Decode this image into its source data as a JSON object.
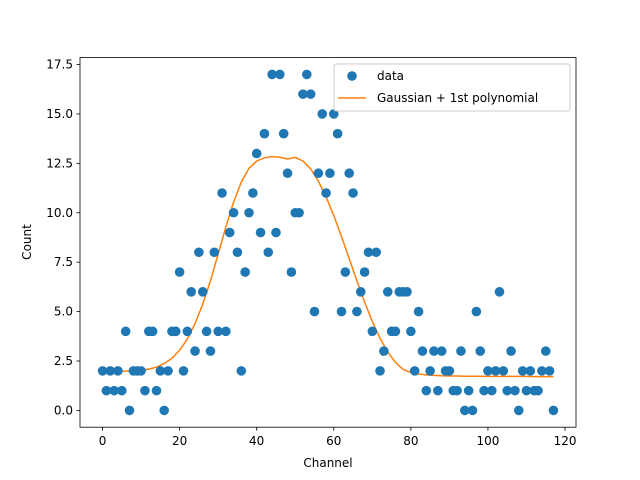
{
  "chart_data": {
    "type": "scatter",
    "xlabel": "Channel",
    "ylabel": "Count",
    "xlim": [
      -5.85,
      122.85
    ],
    "ylim": [
      -0.85,
      17.85
    ],
    "xticks": [
      0,
      20,
      40,
      60,
      80,
      100,
      120
    ],
    "yticks": [
      0.0,
      2.5,
      5.0,
      7.5,
      10.0,
      12.5,
      15.0,
      17.5
    ],
    "grid": false,
    "legend_position": "top-right",
    "colors": {
      "data": "#1f77b4",
      "fit": "#ff7f0e"
    },
    "series": [
      {
        "name": "data",
        "kind": "scatter",
        "x": [
          0,
          1,
          2,
          3,
          4,
          5,
          6,
          7,
          8,
          9,
          10,
          11,
          12,
          13,
          14,
          15,
          16,
          17,
          18,
          19,
          20,
          21,
          22,
          23,
          24,
          25,
          26,
          27,
          28,
          29,
          30,
          31,
          32,
          33,
          34,
          35,
          36,
          37,
          38,
          39,
          40,
          41,
          42,
          43,
          44,
          45,
          46,
          47,
          48,
          49,
          50,
          51,
          52,
          53,
          54,
          55,
          56,
          57,
          58,
          59,
          60,
          61,
          62,
          63,
          64,
          65,
          66,
          67,
          68,
          69,
          70,
          71,
          72,
          73,
          74,
          75,
          76,
          77,
          78,
          79,
          80,
          81,
          82,
          83,
          84,
          85,
          86,
          87,
          88,
          89,
          90,
          91,
          92,
          93,
          94,
          95,
          96,
          97,
          98,
          99,
          100,
          101,
          102,
          103,
          104,
          105,
          106,
          107,
          108,
          109,
          110,
          111,
          112,
          113,
          114,
          115,
          116,
          117
        ],
        "y": [
          2,
          1,
          2,
          1,
          2,
          1,
          4,
          0,
          2,
          2,
          2,
          1,
          4,
          4,
          1,
          2,
          0,
          2,
          4,
          4,
          7,
          2,
          4,
          6,
          3,
          8,
          6,
          4,
          3,
          8,
          4,
          11,
          4,
          9,
          10,
          8,
          2,
          7,
          10,
          11,
          13,
          9,
          14,
          8,
          17,
          9,
          17,
          14,
          12,
          7,
          10,
          10,
          16,
          17,
          16,
          5,
          12,
          15,
          11,
          12,
          15,
          14,
          5,
          7,
          12,
          11,
          5,
          6,
          7,
          8,
          4,
          8,
          2,
          3,
          6,
          4,
          4,
          6,
          6,
          6,
          4,
          2,
          5,
          3,
          1,
          2,
          3,
          1,
          3,
          2,
          2,
          1,
          1,
          3,
          0,
          1,
          0,
          5,
          3,
          1,
          2,
          1,
          2,
          6,
          2,
          1,
          3,
          1,
          0,
          2,
          1,
          2,
          1,
          1,
          2,
          3,
          2,
          0
        ]
      },
      {
        "name": "Gaussian + 1st polynomial",
        "kind": "line",
        "x": [
          0,
          2,
          4,
          6,
          8,
          10,
          12,
          14,
          16,
          18,
          20,
          22,
          24,
          26,
          28,
          30,
          32,
          34,
          36,
          38,
          40,
          42,
          44,
          46,
          48,
          50,
          52,
          54,
          56,
          58,
          60,
          62,
          64,
          66,
          68,
          70,
          72,
          74,
          76,
          78,
          80,
          82,
          84,
          86,
          88,
          90,
          92,
          94,
          96,
          98,
          100,
          102,
          104,
          106,
          108,
          110,
          112,
          114,
          116,
          117
        ],
        "y": [
          1.98,
          1.98,
          1.98,
          1.99,
          2.0,
          2.03,
          2.09,
          2.19,
          2.37,
          2.64,
          3.04,
          3.61,
          4.39,
          5.37,
          6.56,
          7.91,
          9.28,
          10.54,
          11.55,
          12.25,
          12.62,
          12.78,
          12.84,
          12.81,
          12.72,
          12.8,
          12.62,
          12.22,
          11.6,
          10.8,
          9.86,
          8.8,
          7.68,
          6.56,
          5.48,
          4.5,
          3.65,
          2.96,
          2.43,
          2.07,
          1.92,
          1.84,
          1.8,
          1.77,
          1.75,
          1.74,
          1.74,
          1.73,
          1.73,
          1.73,
          1.72,
          1.72,
          1.72,
          1.72,
          1.72,
          1.72,
          1.71,
          1.71,
          1.71,
          1.71
        ]
      }
    ]
  }
}
